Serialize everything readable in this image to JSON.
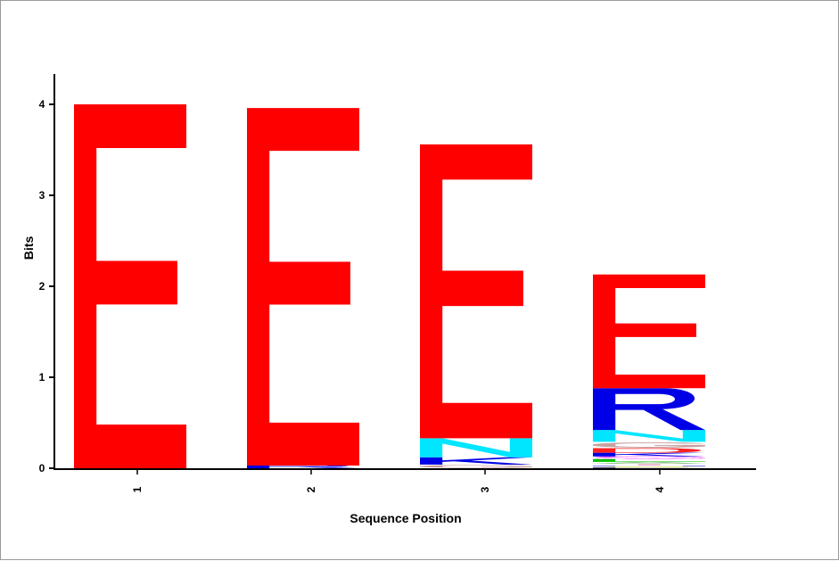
{
  "chart_data": {
    "type": "sequence-logo",
    "xlabel": "Sequence Position",
    "ylabel": "Bits",
    "ylim": [
      0,
      4
    ],
    "y_ticks": [
      0,
      1,
      2,
      3,
      4
    ],
    "positions": [
      "1",
      "2",
      "3",
      "4"
    ],
    "colors": {
      "E": "#ff0000",
      "N": "#00e6ff",
      "R": "#0000e6",
      "K": "#0000e6",
      "G": "#c8a0a0",
      "S": "#ff00ff",
      "D": "#ff2020",
      "T": "#f0c0d0",
      "A": "#80c080",
      "L": "#00c000",
      "H": "#8080ff",
      "Q": "#20e0e0",
      "V": "#e0e000",
      "F": "#404080",
      "Y": "#00a0a0"
    },
    "stacks": [
      {
        "position": "1",
        "letters": [
          {
            "letter": "E",
            "height": 4.0
          }
        ]
      },
      {
        "position": "2",
        "letters": [
          {
            "letter": "R",
            "height": 0.03
          },
          {
            "letter": "E",
            "height": 3.93
          }
        ]
      },
      {
        "position": "3",
        "letters": [
          {
            "letter": "G",
            "height": 0.04
          },
          {
            "letter": "K",
            "height": 0.08
          },
          {
            "letter": "N",
            "height": 0.21
          },
          {
            "letter": "E",
            "height": 3.23
          }
        ]
      },
      {
        "position": "4",
        "letters": [
          {
            "letter": "F",
            "height": 0.01
          },
          {
            "letter": "V",
            "height": 0.01
          },
          {
            "letter": "H",
            "height": 0.01
          },
          {
            "letter": "T",
            "height": 0.02
          },
          {
            "letter": "A",
            "height": 0.02
          },
          {
            "letter": "L",
            "height": 0.03
          },
          {
            "letter": "S",
            "height": 0.03
          },
          {
            "letter": "K",
            "height": 0.04
          },
          {
            "letter": "D",
            "height": 0.05
          },
          {
            "letter": "G",
            "height": 0.07
          },
          {
            "letter": "N",
            "height": 0.13
          },
          {
            "letter": "R",
            "height": 0.46
          },
          {
            "letter": "E",
            "height": 1.25
          }
        ]
      }
    ]
  }
}
